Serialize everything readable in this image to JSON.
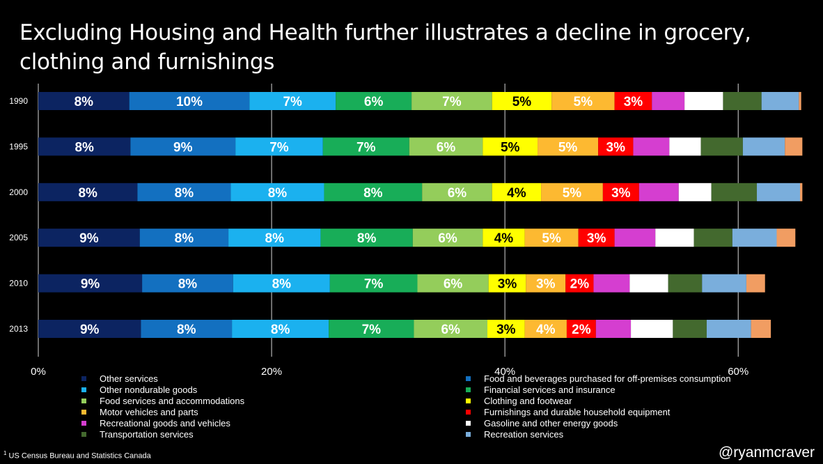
{
  "title": "Excluding Housing and Health further illustrates a decline in grocery, clothing and furnishings",
  "footnote": {
    "marker": "1",
    "text": " US Census Bureau and Statistics Canada"
  },
  "handle": "@ryanmcraver",
  "chart_data": {
    "type": "bar",
    "orientation": "horizontal",
    "stacked": true,
    "title": "Excluding Housing and Health further illustrates a decline in grocery, clothing and furnishings",
    "categories": [
      "1990",
      "1995",
      "2000",
      "2005",
      "2010",
      "2013"
    ],
    "x_ticks": [
      "0%",
      "20%",
      "40%",
      "60%"
    ],
    "x_tick_values": [
      0,
      20,
      40,
      60
    ],
    "xlim": [
      0,
      65.3
    ],
    "grid": "vertical",
    "legend_position": "bottom",
    "series": [
      {
        "name": "Other services",
        "color": "#0c2461",
        "values": [
          7.8,
          7.9,
          8.5,
          8.7,
          8.9,
          8.8
        ],
        "labels": [
          "8%",
          "8%",
          "8%",
          "9%",
          "9%",
          "9%"
        ],
        "label_color": "#ffffff"
      },
      {
        "name": "Food and beverages purchased for off-premises consumption",
        "color": "#1370c0",
        "values": [
          10.3,
          9.0,
          8.0,
          7.6,
          7.8,
          7.8
        ],
        "labels": [
          "10%",
          "9%",
          "8%",
          "8%",
          "8%",
          "8%"
        ],
        "label_color": "#ffffff"
      },
      {
        "name": "Other nondurable goods",
        "color": "#1bb1ef",
        "values": [
          7.4,
          7.5,
          8.0,
          7.9,
          8.3,
          8.3
        ],
        "labels": [
          "7%",
          "7%",
          "8%",
          "8%",
          "8%",
          "8%"
        ],
        "label_color": "#ffffff"
      },
      {
        "name": "Financial services and insurance",
        "color": "#18ad58",
        "values": [
          6.5,
          7.4,
          8.4,
          7.9,
          7.5,
          7.3
        ],
        "labels": [
          "6%",
          "7%",
          "8%",
          "8%",
          "7%",
          "7%"
        ],
        "label_color": "#ffffff"
      },
      {
        "name": "Food services and accommodations",
        "color": "#94cd5b",
        "values": [
          6.9,
          6.3,
          6.0,
          6.0,
          6.1,
          6.3
        ],
        "labels": [
          "7%",
          "6%",
          "6%",
          "6%",
          "6%",
          "6%"
        ],
        "label_color": "#ffffff"
      },
      {
        "name": "Clothing and footwear",
        "color": "#ffff00",
        "values": [
          5.1,
          4.7,
          4.2,
          3.6,
          3.2,
          3.2
        ],
        "labels": [
          "5%",
          "5%",
          "4%",
          "4%",
          "3%",
          "3%"
        ],
        "label_color": "#000000"
      },
      {
        "name": "Motor vehicles and parts",
        "color": "#fdb931",
        "values": [
          5.4,
          5.2,
          5.3,
          4.6,
          3.4,
          3.6
        ],
        "labels": [
          "5%",
          "5%",
          "5%",
          "5%",
          "3%",
          "4%"
        ],
        "label_color": "#ffffff"
      },
      {
        "name": "Furnishings and durable household equipment",
        "color": "#ff0000",
        "values": [
          3.2,
          3.0,
          3.1,
          3.1,
          2.4,
          2.5
        ],
        "labels": [
          "3%",
          "3%",
          "3%",
          "3%",
          "2%",
          "2%"
        ],
        "label_color": "#ffffff"
      },
      {
        "name": "Recreational goods and vehicles",
        "color": "#d53ed0",
        "values": [
          2.8,
          3.1,
          3.4,
          3.5,
          3.1,
          3.0
        ],
        "labels": [
          "",
          "",
          "",
          "",
          "",
          ""
        ],
        "label_color": "#ffffff"
      },
      {
        "name": "Gasoline and other energy goods",
        "color": "#ffffff",
        "values": [
          3.3,
          2.7,
          2.8,
          3.3,
          3.3,
          3.6
        ],
        "labels": [
          "",
          "",
          "",
          "",
          "",
          ""
        ],
        "label_color": "#000000"
      },
      {
        "name": "Transportation services",
        "color": "#43692e",
        "values": [
          3.3,
          3.6,
          3.9,
          3.3,
          2.9,
          2.9
        ],
        "labels": [
          "",
          "",
          "",
          "",
          "",
          ""
        ],
        "label_color": "#ffffff"
      },
      {
        "name": "Recreation services",
        "color": "#7aaedc",
        "values": [
          3.2,
          3.6,
          3.7,
          3.8,
          3.8,
          3.8
        ],
        "labels": [
          "",
          "",
          "",
          "",
          "",
          ""
        ],
        "label_color": "#ffffff"
      },
      {
        "name": "",
        "color": "#f19d62",
        "values": [
          0.2,
          1.5,
          0.2,
          1.6,
          1.6,
          1.7
        ],
        "labels": [
          "",
          "",
          "",
          "",
          "",
          ""
        ],
        "label_color": "#ffffff"
      }
    ],
    "legend": {
      "left": [
        {
          "name": "Other services",
          "color": "#0c2461"
        },
        {
          "name": "Other nondurable goods",
          "color": "#1bb1ef"
        },
        {
          "name": "Food services and accommodations",
          "color": "#94cd5b"
        },
        {
          "name": "Motor vehicles and parts",
          "color": "#fdb931"
        },
        {
          "name": "Recreational goods and vehicles",
          "color": "#d53ed0"
        },
        {
          "name": "Transportation services",
          "color": "#43692e"
        }
      ],
      "right": [
        {
          "name": "Food and beverages purchased for off-premises consumption",
          "color": "#1370c0"
        },
        {
          "name": "Financial services and insurance",
          "color": "#18ad58"
        },
        {
          "name": "Clothing and footwear",
          "color": "#ffff00"
        },
        {
          "name": "Furnishings and durable household equipment",
          "color": "#ff0000"
        },
        {
          "name": "Gasoline and other energy goods",
          "color": "#ffffff"
        },
        {
          "name": "Recreation services",
          "color": "#7aaedc"
        }
      ]
    }
  }
}
